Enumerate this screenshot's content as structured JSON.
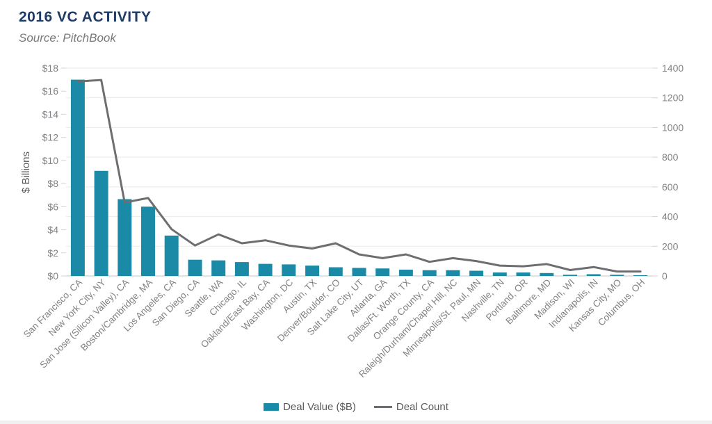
{
  "header": {
    "title": "2016 VC ACTIVITY",
    "subtitle": "Source: PitchBook"
  },
  "colors": {
    "title": "#1e3a67",
    "subtitle": "#77787b",
    "bar": "#1b8aa6",
    "line": "#6d6e71",
    "grid": "#e8e9ea",
    "axis_line": "#d7d8da",
    "tick": "#d1d3d4",
    "axis_text": "#808285",
    "axis_title_text": "#58595b",
    "legend_text": "#58595b"
  },
  "chart_data": {
    "type": "combo",
    "title": "2016 VC ACTIVITY",
    "subtitle": "Source: PitchBook",
    "grid": "horizontal gridlines aligned to right axis, no vertical grid",
    "categories": [
      "San Francisco, CA",
      "New York City, NY",
      "San Jose (Silicon Valley), CA",
      "Boston/Cambridge, MA",
      "Los Angeles, CA",
      "San Diego, CA",
      "Seattle, WA",
      "Chicago, IL",
      "Oakland/East Bay, CA",
      "Washington, DC",
      "Austin, TX",
      "Denver/Boulder, CO",
      "Salt Lake City, UT",
      "Atlanta, GA",
      "Dallas/Ft. Worth, TX",
      "Orange County, CA",
      "Raleigh/Durham/Chapel Hill, NC",
      "Minneapolis/St. Paul, MN",
      "Nashville, TN",
      "Portland, OR",
      "Baltimore, MD",
      "Madison, WI",
      "Indianapolis, IN",
      "Kansas City, MO",
      "Columbus, OH"
    ],
    "series": [
      {
        "name": "Deal Value ($B)",
        "type": "bar",
        "axis": "left",
        "color": "#1b8aa6",
        "values": [
          17.0,
          9.1,
          6.65,
          6.0,
          3.5,
          1.4,
          1.35,
          1.2,
          1.05,
          1.0,
          0.9,
          0.75,
          0.7,
          0.65,
          0.55,
          0.5,
          0.5,
          0.45,
          0.3,
          0.3,
          0.25,
          0.1,
          0.15,
          0.1,
          0.05
        ]
      },
      {
        "name": "Deal Count",
        "type": "line",
        "axis": "right",
        "color": "#6d6e71",
        "values": [
          1310,
          1320,
          495,
          525,
          315,
          205,
          280,
          220,
          240,
          205,
          185,
          220,
          145,
          120,
          145,
          95,
          120,
          100,
          70,
          65,
          80,
          40,
          60,
          30,
          30
        ]
      }
    ],
    "left_axis": {
      "label": "$ Billions",
      "min": 0,
      "max": 18,
      "tick_values": [
        0,
        2,
        4,
        6,
        8,
        10,
        12,
        14,
        16,
        18
      ],
      "tick_labels": [
        "$0",
        "$2",
        "$4",
        "$6",
        "$8",
        "$10",
        "$12",
        "$14",
        "$16",
        "$18"
      ]
    },
    "right_axis": {
      "label": "",
      "min": 0,
      "max": 1400,
      "tick_values": [
        0,
        200,
        400,
        600,
        800,
        1000,
        1200,
        1400
      ],
      "tick_labels": [
        "0",
        "200",
        "400",
        "600",
        "800",
        "1000",
        "1200",
        "1400"
      ]
    },
    "legend": {
      "position": "bottom-center",
      "items": [
        "Deal Value ($B)",
        "Deal Count"
      ]
    }
  }
}
